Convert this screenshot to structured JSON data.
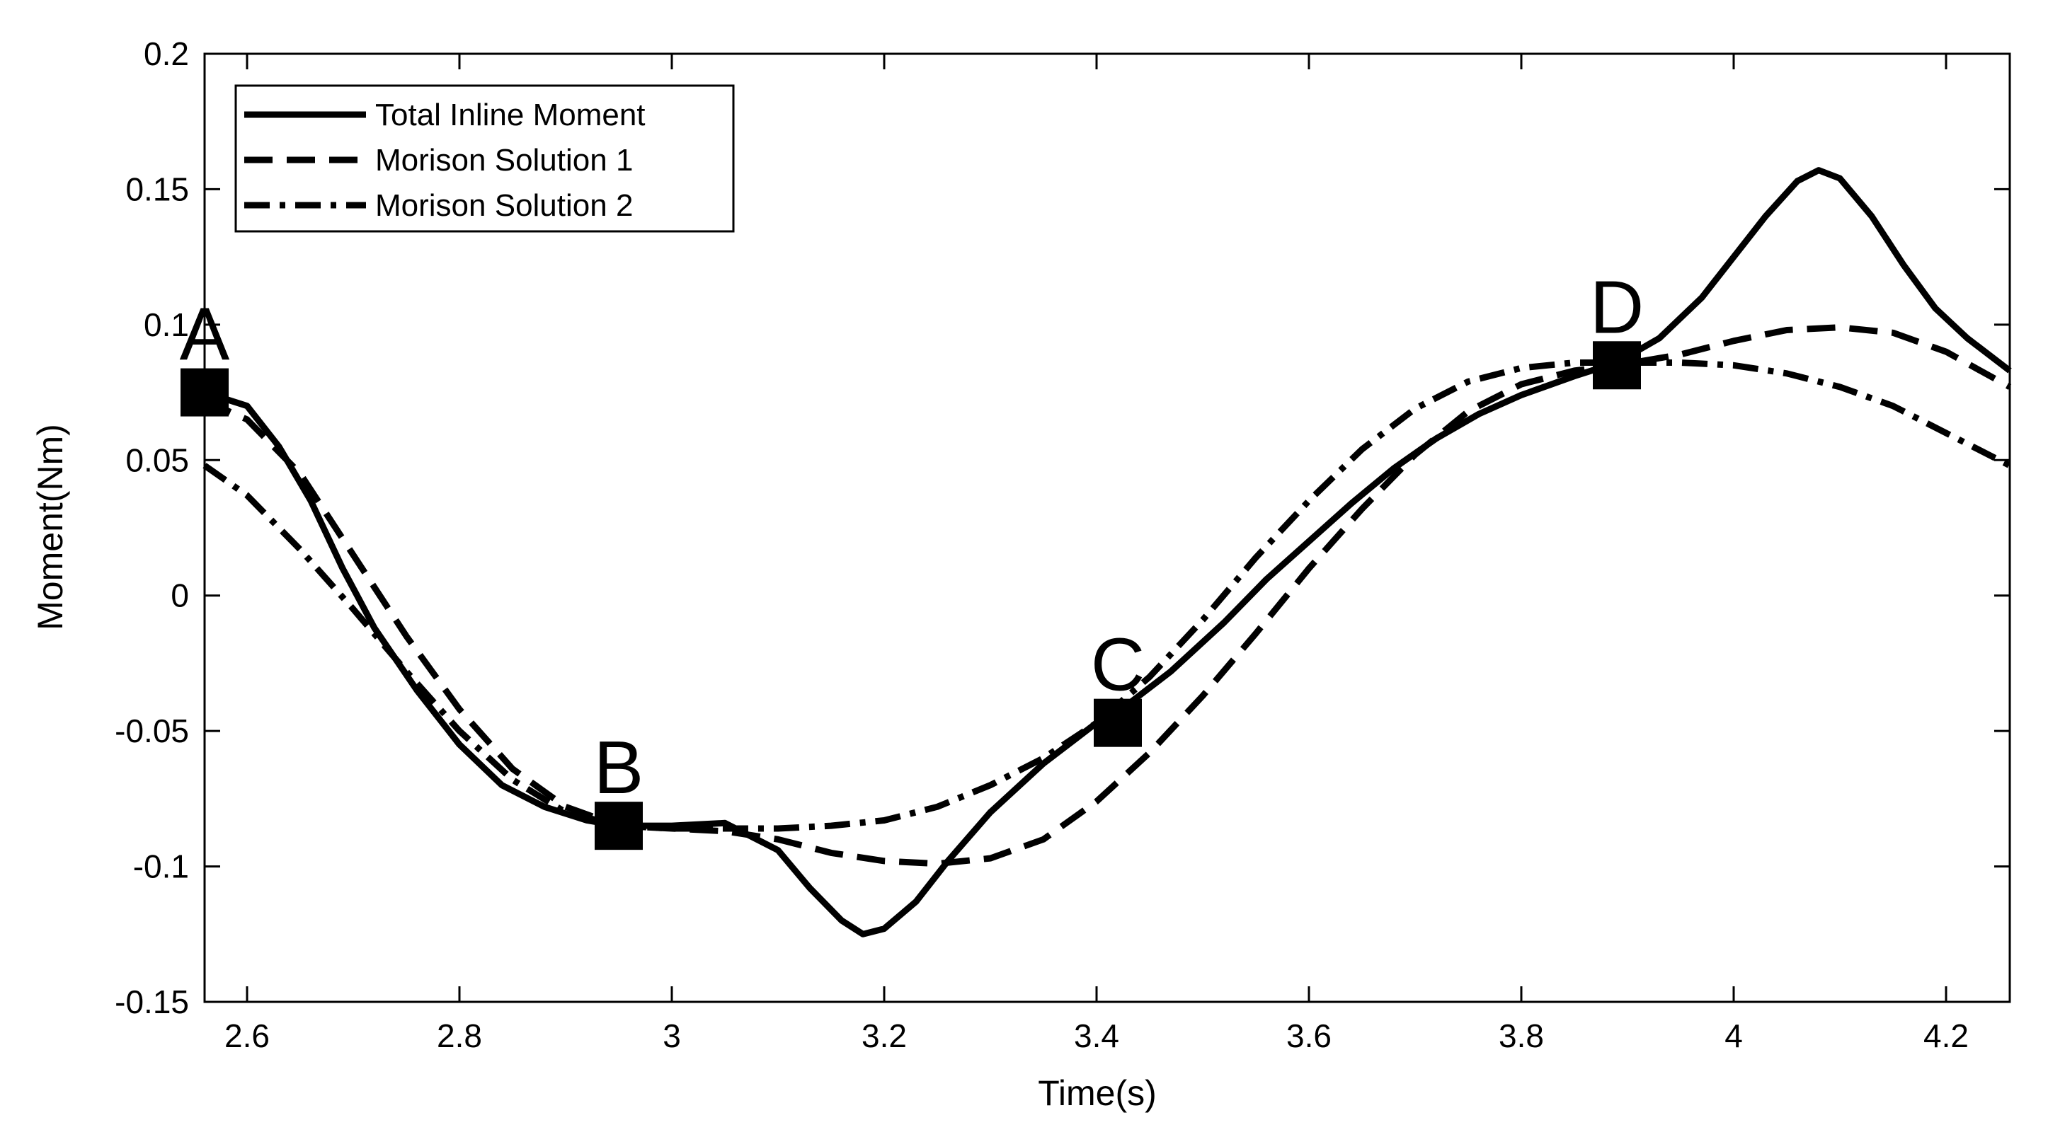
{
  "chart_data": {
    "type": "line",
    "xlabel": "Time(s)",
    "ylabel": "Moment(Nm)",
    "xlim": [
      2.56,
      4.26
    ],
    "ylim": [
      -0.15,
      0.2
    ],
    "xticks": [
      2.6,
      2.8,
      3.0,
      3.2,
      3.4,
      3.6,
      3.8,
      4.0,
      4.2
    ],
    "xtick_labels": [
      "2.6",
      "2.8",
      "3",
      "3.2",
      "3.4",
      "3.6",
      "3.8",
      "4",
      "4.2"
    ],
    "yticks": [
      0.2,
      0.15,
      0.1,
      0.05,
      0,
      -0.05,
      -0.1,
      -0.15
    ],
    "ytick_labels": [
      "0.2",
      "0.15",
      "0.1",
      "0.05",
      "0",
      "-0.05",
      "-0.1",
      "-0.15"
    ],
    "legend_position": "top-left",
    "series": [
      {
        "name": "Total Inline Moment",
        "style": "solid",
        "x": [
          2.56,
          2.6,
          2.63,
          2.66,
          2.69,
          2.72,
          2.76,
          2.8,
          2.84,
          2.88,
          2.92,
          2.95,
          3.0,
          3.05,
          3.1,
          3.13,
          3.16,
          3.18,
          3.2,
          3.23,
          3.26,
          3.3,
          3.35,
          3.4,
          3.43,
          3.47,
          3.52,
          3.56,
          3.6,
          3.64,
          3.68,
          3.72,
          3.76,
          3.8,
          3.85,
          3.89,
          3.93,
          3.97,
          4.0,
          4.03,
          4.06,
          4.08,
          4.1,
          4.13,
          4.16,
          4.19,
          4.22,
          4.26
        ],
        "y": [
          0.075,
          0.07,
          0.055,
          0.035,
          0.01,
          -0.012,
          -0.035,
          -0.055,
          -0.07,
          -0.078,
          -0.083,
          -0.085,
          -0.085,
          -0.084,
          -0.094,
          -0.108,
          -0.12,
          -0.125,
          -0.123,
          -0.113,
          -0.098,
          -0.08,
          -0.062,
          -0.047,
          -0.04,
          -0.028,
          -0.01,
          0.006,
          0.02,
          0.034,
          0.047,
          0.058,
          0.067,
          0.074,
          0.081,
          0.086,
          0.095,
          0.11,
          0.125,
          0.14,
          0.153,
          0.157,
          0.154,
          0.14,
          0.122,
          0.106,
          0.095,
          0.083
        ]
      },
      {
        "name": "Morison Solution 1",
        "style": "dashed",
        "x": [
          2.56,
          2.6,
          2.65,
          2.7,
          2.75,
          2.8,
          2.85,
          2.9,
          2.95,
          3.0,
          3.05,
          3.1,
          3.15,
          3.2,
          3.25,
          3.3,
          3.35,
          3.4,
          3.45,
          3.5,
          3.55,
          3.6,
          3.65,
          3.7,
          3.75,
          3.8,
          3.85,
          3.89,
          3.95,
          4.0,
          4.05,
          4.1,
          4.15,
          4.2,
          4.26
        ],
        "y": [
          0.072,
          0.065,
          0.045,
          0.015,
          -0.015,
          -0.042,
          -0.064,
          -0.078,
          -0.085,
          -0.086,
          -0.087,
          -0.09,
          -0.095,
          -0.098,
          -0.099,
          -0.097,
          -0.09,
          -0.076,
          -0.058,
          -0.037,
          -0.014,
          0.01,
          0.032,
          0.052,
          0.068,
          0.078,
          0.083,
          0.085,
          0.089,
          0.094,
          0.098,
          0.099,
          0.097,
          0.09,
          0.077
        ]
      },
      {
        "name": "Morison Solution 2",
        "style": "dashdot",
        "x": [
          2.56,
          2.6,
          2.65,
          2.7,
          2.75,
          2.8,
          2.85,
          2.9,
          2.95,
          3.0,
          3.05,
          3.1,
          3.15,
          3.2,
          3.25,
          3.3,
          3.35,
          3.4,
          3.45,
          3.5,
          3.55,
          3.6,
          3.65,
          3.7,
          3.75,
          3.8,
          3.85,
          3.89,
          3.95,
          4.0,
          4.05,
          4.1,
          4.15,
          4.2,
          4.26
        ],
        "y": [
          0.048,
          0.037,
          0.017,
          -0.005,
          -0.028,
          -0.05,
          -0.068,
          -0.08,
          -0.085,
          -0.086,
          -0.086,
          -0.086,
          -0.085,
          -0.083,
          -0.078,
          -0.07,
          -0.06,
          -0.047,
          -0.03,
          -0.009,
          0.014,
          0.035,
          0.054,
          0.069,
          0.079,
          0.084,
          0.086,
          0.086,
          0.086,
          0.085,
          0.082,
          0.077,
          0.07,
          0.06,
          0.048
        ]
      }
    ],
    "markers": [
      {
        "label": "A",
        "x": 2.56,
        "y": 0.075
      },
      {
        "label": "B",
        "x": 2.95,
        "y": -0.085
      },
      {
        "label": "C",
        "x": 3.42,
        "y": -0.047
      },
      {
        "label": "D",
        "x": 3.89,
        "y": 0.085
      }
    ]
  }
}
